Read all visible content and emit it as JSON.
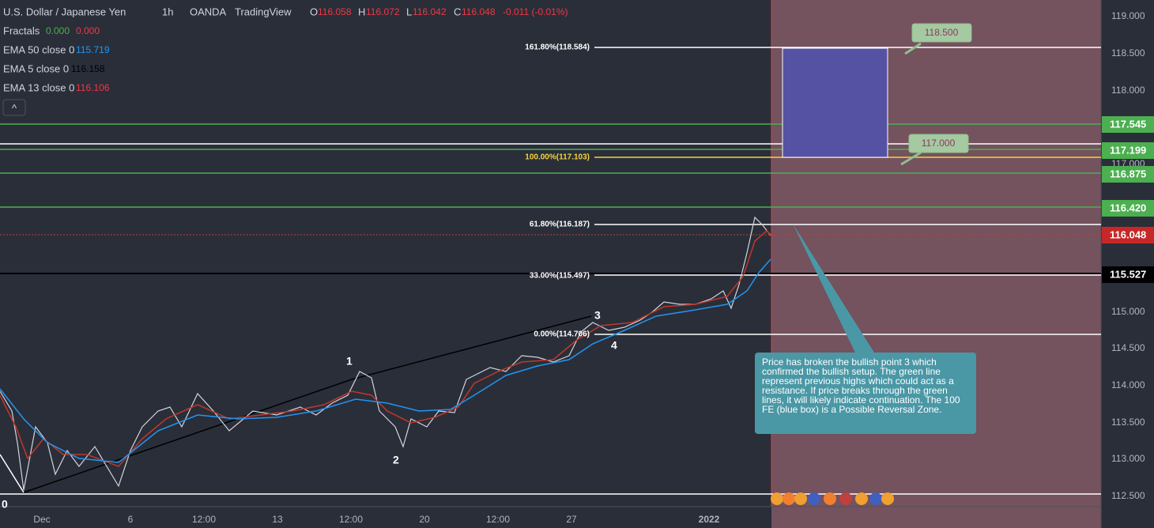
{
  "header": {
    "symbol": "U.S. Dollar / Japanese Yen",
    "interval": "1h",
    "broker": "OANDA",
    "platform": "TradingView",
    "ohlc": [
      {
        "key": "O",
        "value": "116.058"
      },
      {
        "key": "H",
        "value": "116.072"
      },
      {
        "key": "L",
        "value": "116.042"
      },
      {
        "key": "C",
        "value": "116.048"
      }
    ],
    "change": "-0.011 (-0.01%)"
  },
  "indicators": [
    {
      "name": "Fractals",
      "values": [
        "0.000",
        "0.000"
      ]
    },
    {
      "name": "EMA 50 close 0",
      "values": [
        "115.719"
      ]
    },
    {
      "name": "EMA 5 close 0",
      "values": [
        "116.158"
      ]
    },
    {
      "name": "EMA 13 close 0",
      "values": [
        "116.106"
      ]
    }
  ],
  "collapse_button": "^",
  "price_axis": [
    "119.000",
    "118.500",
    "118.000",
    "117.000",
    "115.000",
    "114.500",
    "114.000",
    "113.500",
    "113.000",
    "112.500"
  ],
  "price_tags": [
    "117.545",
    "117.199",
    "116.875",
    "116.420",
    "116.048",
    "115.527"
  ],
  "fib_levels": [
    "161.80%(118.584)",
    "100.00%(117.103)",
    "61.80%(116.187)",
    "33.00%(115.497)",
    "0.00%(114.706)"
  ],
  "time_axis": [
    "Dec",
    "6",
    "12:00",
    "13",
    "12:00",
    "20",
    "12:00",
    "27",
    "2022"
  ],
  "wave_labels": [
    "0",
    "1",
    "2",
    "3",
    "4"
  ],
  "targets": [
    "118.500",
    "117.000"
  ],
  "note": "Price has broken the bullish point 3 which confirmed the bullish setup. The green line represent previous highs which could act as a resistance. If price breaks through the green lines, it will likely indicate continuation. The 100 FE (blue box) is a Possible Reversal Zone."
}
